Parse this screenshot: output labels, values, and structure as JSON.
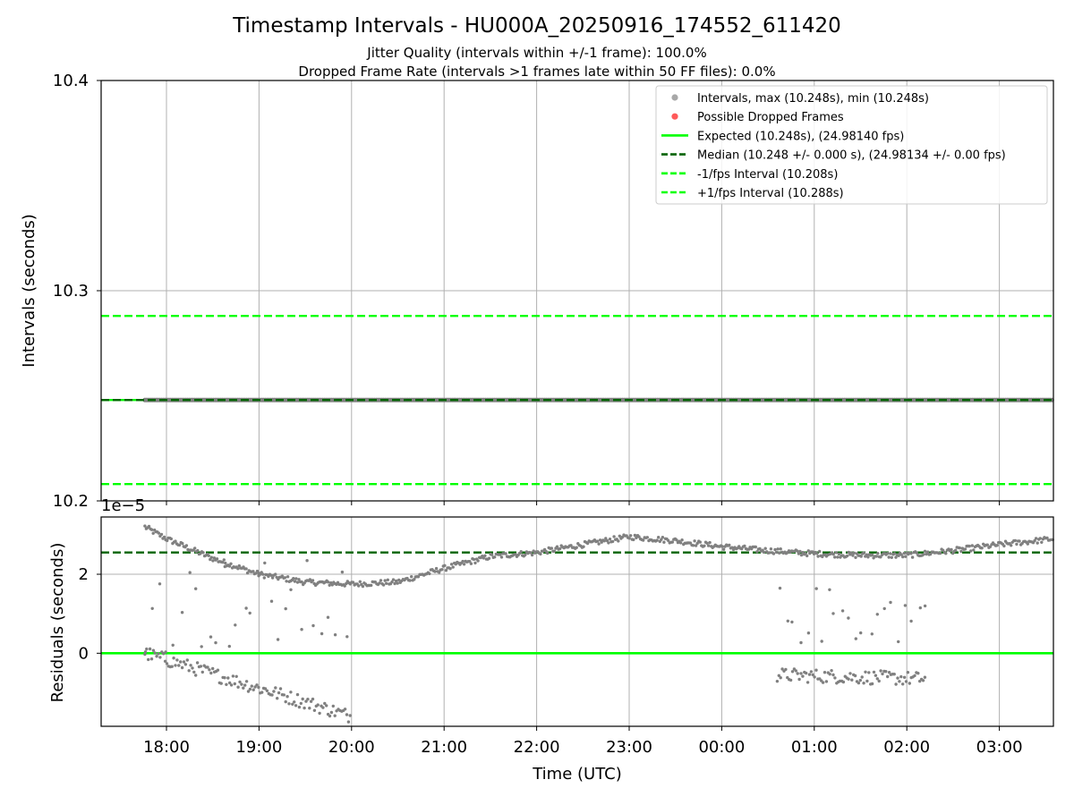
{
  "title": "Timestamp Intervals - HU000A_20250916_174552_611420",
  "subtitle_1": "Jitter Quality (intervals within +/-1 frame): 100.0%",
  "subtitle_2": "Dropped Frame Rate (intervals >1 frames late within 50 FF files): 0.0%",
  "colors": {
    "points": "#808080",
    "dropped": "#ff5a5a",
    "expected": "#00ff00",
    "median": "#006400",
    "bounds": "#00ff00",
    "grid": "#b0b0b0"
  },
  "chart_data": [
    {
      "type": "scatter",
      "panel": "intervals",
      "ylabel": "Intervals (seconds)",
      "ylim": [
        10.2,
        10.4
      ],
      "yticks": [
        "10.2",
        "10.3",
        "10.4"
      ],
      "grid": true,
      "legend_position": "top-right",
      "legend": [
        {
          "label": "Intervals, max (10.248s), min (10.248s)",
          "kind": "marker",
          "color": "#a8a8a8"
        },
        {
          "label": "Possible Dropped Frames",
          "kind": "marker",
          "color": "#ff5a5a"
        },
        {
          "label": "Expected (10.248s), (24.98140 fps)",
          "kind": "solid",
          "color": "#00ff00"
        },
        {
          "label": "Median (10.248 +/- 0.000 s), (24.98134 +/- 0.00 fps)",
          "kind": "dashed",
          "color": "#006400"
        },
        {
          "label": "-1/fps Interval (10.208s)",
          "kind": "dashed",
          "color": "#00ff00"
        },
        {
          "label": "+1/fps Interval (10.288s)",
          "kind": "dashed",
          "color": "#00ff00"
        }
      ],
      "x_start": "17:46",
      "x_end": "03:36",
      "interval_value": 10.248,
      "expected": 10.248,
      "median": 10.248,
      "lower_bound": 10.208,
      "upper_bound": 10.288
    },
    {
      "type": "scatter",
      "panel": "residuals",
      "ylabel": "Residuals (seconds)",
      "xlabel": "Time (UTC)",
      "offset_label": "1e−5",
      "ylim": [
        -1.85,
        3.45
      ],
      "yticks": [
        "0",
        "2"
      ],
      "xticks": [
        "18:00",
        "19:00",
        "20:00",
        "21:00",
        "22:00",
        "23:00",
        "00:00",
        "01:00",
        "02:00",
        "03:00"
      ],
      "grid": true,
      "zero_line": 0,
      "median_line": 2.55,
      "trend": {
        "time": [
          "17:46",
          "18:00",
          "18:30",
          "19:00",
          "19:30",
          "20:00",
          "20:30",
          "21:00",
          "21:30",
          "22:00",
          "22:30",
          "23:00",
          "23:30",
          "00:00",
          "00:30",
          "01:00",
          "01:30",
          "02:00",
          "02:30",
          "03:00",
          "03:36"
        ],
        "value": [
          3.2,
          2.9,
          2.4,
          2.0,
          1.8,
          1.75,
          1.8,
          2.15,
          2.45,
          2.55,
          2.75,
          2.95,
          2.85,
          2.7,
          2.6,
          2.52,
          2.48,
          2.48,
          2.6,
          2.75,
          2.9
        ]
      },
      "outlier_clusters": [
        {
          "from": "17:46",
          "to": "20:00",
          "low_start": 0.0,
          "low_end": -1.6,
          "scatter_low": 0.0,
          "scatter_high": 2.4
        },
        {
          "from": "00:36",
          "to": "02:12",
          "low_start": -0.55,
          "low_end": -0.65,
          "scatter_low": 0.2,
          "scatter_high": 1.7
        }
      ]
    }
  ]
}
